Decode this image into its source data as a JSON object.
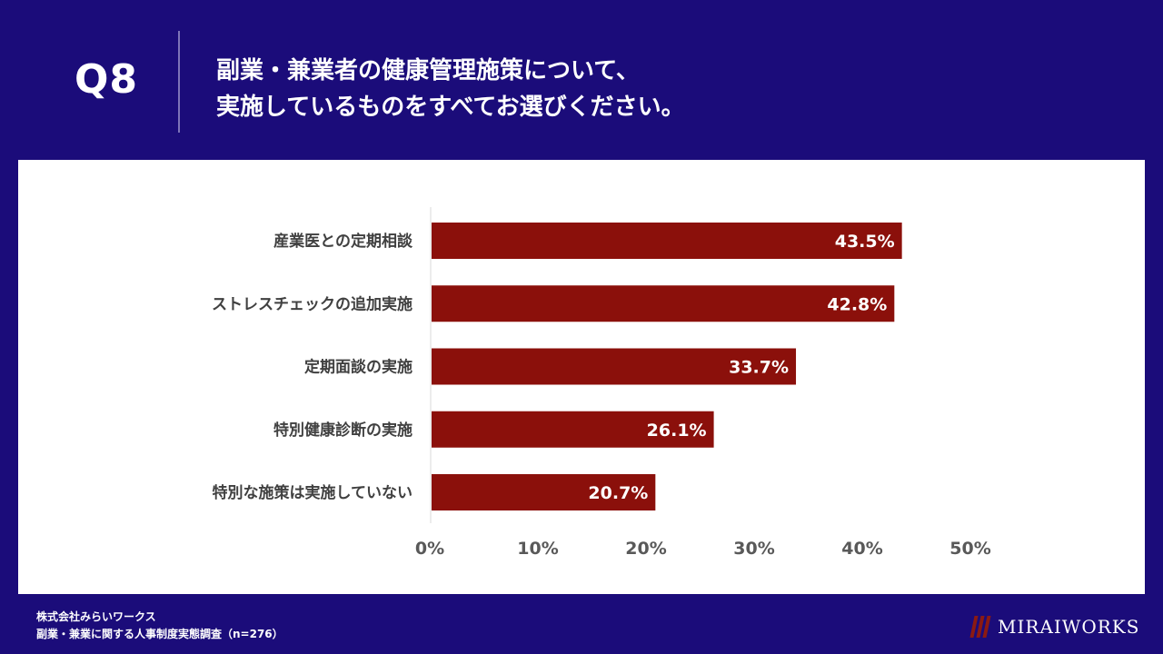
{
  "header": {
    "question_label": "Q8",
    "title_line1": "副業・兼業者の健康管理施策について、",
    "title_line2": "実施しているものをすべてお選びください。"
  },
  "chart_data": {
    "type": "bar",
    "orientation": "horizontal",
    "categories": [
      "産業医との定期相談",
      "ストレスチェックの追加実施",
      "定期面談の実施",
      "特別健康診断の実施",
      "特別な施策は実施していない"
    ],
    "values": [
      43.5,
      42.8,
      33.7,
      26.1,
      20.7
    ],
    "value_labels": [
      "43.5%",
      "42.8%",
      "33.7%",
      "26.1%",
      "20.7%"
    ],
    "xlim": [
      0,
      50
    ],
    "ticks": [
      0,
      10,
      20,
      30,
      40,
      50
    ],
    "tick_labels": [
      "0%",
      "10%",
      "20%",
      "30%",
      "40%",
      "50%"
    ],
    "bar_color": "#8b100b",
    "title": "",
    "xlabel": "",
    "ylabel": ""
  },
  "footer": {
    "company": "株式会社みらいワークス",
    "survey": "副業・兼業に関する人事制度実態調査（n=276）",
    "logo_text": "MIRAIWORKS"
  },
  "colors": {
    "background": "#1b0c7a",
    "panel": "#ffffff",
    "bar": "#8b100b"
  }
}
